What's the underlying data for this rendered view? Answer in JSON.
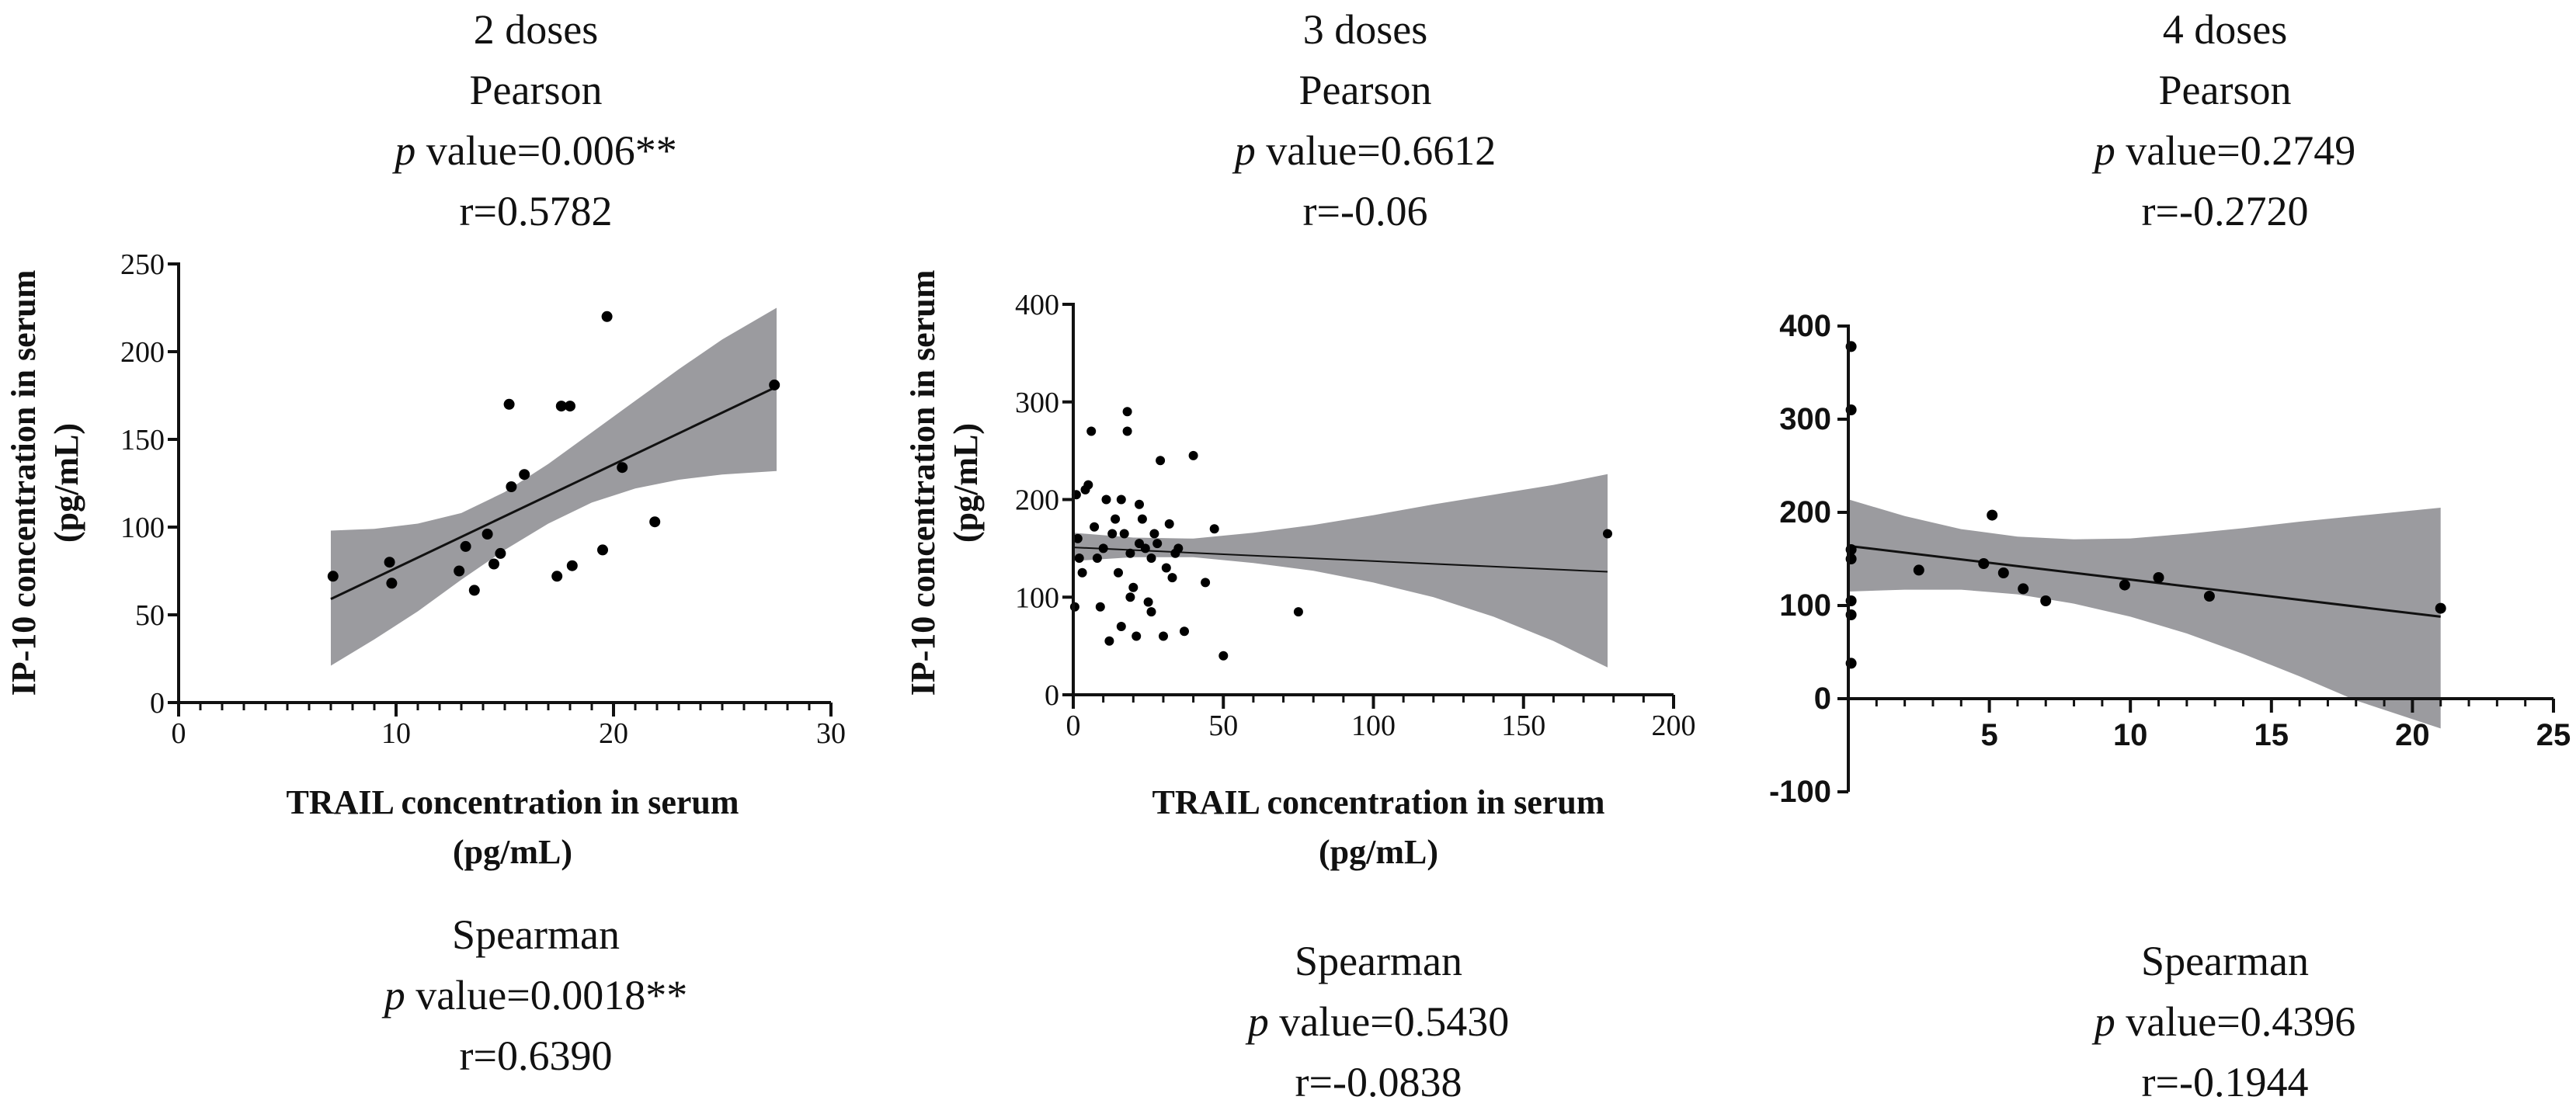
{
  "chart_data": [
    {
      "type": "scatter",
      "panel": "2 doses",
      "title": "2 doses",
      "pearson": {
        "label": "Pearson",
        "p_label": "p",
        "p_text": " value=0.006**",
        "r_text": "r=0.5782"
      },
      "spearman": {
        "label": "Spearman",
        "p_label": "p",
        "p_text": " value=0.0018**",
        "r_text": "r=0.6390"
      },
      "xlabel": "TRAIL concentration in serum",
      "xlabel_unit": "(pg/mL)",
      "ylabel": "IP-10 concentration in serum",
      "ylabel_unit": "(pg/mL)",
      "xlim": [
        0,
        30
      ],
      "ylim": [
        0,
        250
      ],
      "x_ticks": [
        0,
        10,
        20,
        30
      ],
      "y_ticks": [
        0,
        50,
        100,
        150,
        200,
        250
      ],
      "x_minor": 1,
      "points": [
        [
          7.1,
          72
        ],
        [
          9.7,
          80
        ],
        [
          9.8,
          68
        ],
        [
          12.9,
          75
        ],
        [
          13.2,
          89
        ],
        [
          13.6,
          64
        ],
        [
          14.2,
          96
        ],
        [
          14.5,
          79
        ],
        [
          14.8,
          85
        ],
        [
          15.2,
          170
        ],
        [
          15.3,
          123
        ],
        [
          15.9,
          130
        ],
        [
          17.4,
          72
        ],
        [
          17.6,
          169
        ],
        [
          18.0,
          169
        ],
        [
          18.1,
          78
        ],
        [
          19.5,
          87
        ],
        [
          19.7,
          220
        ],
        [
          20.4,
          134
        ],
        [
          21.9,
          103
        ],
        [
          27.4,
          181
        ]
      ],
      "fit": {
        "x0": 7.0,
        "y0": 59,
        "x1": 27.5,
        "y1": 180
      },
      "band": [
        [
          7,
          21,
          98
        ],
        [
          9,
          36,
          99
        ],
        [
          11,
          52,
          102
        ],
        [
          13,
          70,
          108
        ],
        [
          15,
          87,
          120
        ],
        [
          17,
          102,
          136
        ],
        [
          19,
          114,
          154
        ],
        [
          21,
          122,
          172
        ],
        [
          23,
          127,
          190
        ],
        [
          25,
          130,
          207
        ],
        [
          27.5,
          132,
          225
        ]
      ]
    },
    {
      "type": "scatter",
      "panel": "3 doses",
      "title": "3 doses",
      "pearson": {
        "label": "Pearson",
        "p_label": "p",
        "p_text": " value=0.6612",
        "r_text": "r=-0.06"
      },
      "spearman": {
        "label": "Spearman",
        "p_label": "p",
        "p_text": " value=0.5430",
        "r_text": "r=-0.0838"
      },
      "xlabel": "TRAIL concentration in serum",
      "xlabel_unit": "(pg/mL)",
      "ylabel": "IP-10 concentration in serum",
      "ylabel_unit": "(pg/mL)",
      "xlim": [
        0,
        200
      ],
      "ylim": [
        0,
        400
      ],
      "x_ticks": [
        0,
        50,
        100,
        150,
        200
      ],
      "y_ticks": [
        0,
        100,
        200,
        300,
        400
      ],
      "x_minor": 10,
      "points": [
        [
          0.5,
          90
        ],
        [
          1,
          205
        ],
        [
          1.5,
          160
        ],
        [
          2,
          140
        ],
        [
          3,
          125
        ],
        [
          4,
          210
        ],
        [
          5,
          215
        ],
        [
          6,
          270
        ],
        [
          7,
          172
        ],
        [
          8,
          140
        ],
        [
          10,
          150
        ],
        [
          12,
          55
        ],
        [
          13,
          165
        ],
        [
          14,
          180
        ],
        [
          15,
          125
        ],
        [
          16,
          70
        ],
        [
          17,
          165
        ],
        [
          18,
          270
        ],
        [
          18,
          290
        ],
        [
          19,
          145
        ],
        [
          20,
          110
        ],
        [
          21,
          60
        ],
        [
          22,
          195
        ],
        [
          23,
          180
        ],
        [
          24,
          150
        ],
        [
          25,
          95
        ],
        [
          26,
          85
        ],
        [
          27,
          165
        ],
        [
          28,
          155
        ],
        [
          29,
          240
        ],
        [
          30,
          60
        ],
        [
          31,
          130
        ],
        [
          32,
          175
        ],
        [
          33,
          120
        ],
        [
          34,
          145
        ],
        [
          35,
          150
        ],
        [
          37,
          65
        ],
        [
          40,
          245
        ],
        [
          44,
          115
        ],
        [
          47,
          170
        ],
        [
          50,
          40
        ],
        [
          75,
          85
        ],
        [
          178,
          165
        ],
        [
          9,
          90
        ],
        [
          11,
          200
        ],
        [
          16,
          200
        ],
        [
          19,
          100
        ],
        [
          22,
          155
        ],
        [
          26,
          140
        ]
      ],
      "fit": {
        "x0": 0,
        "y0": 151,
        "x1": 178,
        "y1": 126
      },
      "band": [
        [
          0,
          137,
          166
        ],
        [
          20,
          141,
          161
        ],
        [
          40,
          141,
          160
        ],
        [
          60,
          135,
          166
        ],
        [
          80,
          127,
          174
        ],
        [
          100,
          115,
          184
        ],
        [
          120,
          100,
          195
        ],
        [
          140,
          80,
          205
        ],
        [
          160,
          55,
          215
        ],
        [
          178,
          28,
          226
        ]
      ]
    },
    {
      "type": "scatter",
      "panel": "4 doses",
      "title": "4 doses",
      "pearson": {
        "label": "Pearson",
        "p_label": "p",
        "p_text": " value=0.2749",
        "r_text": "r=-0.2720"
      },
      "spearman": {
        "label": "Spearman",
        "p_label": "p",
        "p_text": " value=0.4396",
        "r_text": "r=-0.1944"
      },
      "xlim": [
        0,
        25
      ],
      "ylim": [
        -100,
        400
      ],
      "x_ticks": [
        5,
        10,
        15,
        20,
        25
      ],
      "y_ticks": [
        -100,
        0,
        100,
        200,
        300,
        400
      ],
      "x_minor": 1,
      "points": [
        [
          0.1,
          378
        ],
        [
          0.1,
          310
        ],
        [
          0.1,
          160
        ],
        [
          0.1,
          150
        ],
        [
          0.1,
          105
        ],
        [
          0.1,
          90
        ],
        [
          0.1,
          38
        ],
        [
          2.5,
          138
        ],
        [
          4.8,
          145
        ],
        [
          5.1,
          197
        ],
        [
          5.5,
          135
        ],
        [
          6.2,
          118
        ],
        [
          7.0,
          105
        ],
        [
          9.8,
          122
        ],
        [
          11.0,
          130
        ],
        [
          12.8,
          110
        ],
        [
          21.0,
          97
        ]
      ],
      "fit": {
        "x0": 0,
        "y0": 164,
        "x1": 21,
        "y1": 88
      },
      "band": [
        [
          0,
          115,
          214
        ],
        [
          2,
          117,
          196
        ],
        [
          4,
          117,
          182
        ],
        [
          6,
          112,
          174
        ],
        [
          8,
          102,
          171
        ],
        [
          10,
          88,
          172
        ],
        [
          12,
          70,
          177
        ],
        [
          14,
          48,
          183
        ],
        [
          16,
          24,
          190
        ],
        [
          18,
          -2,
          196
        ],
        [
          21,
          -32,
          205
        ]
      ]
    }
  ]
}
